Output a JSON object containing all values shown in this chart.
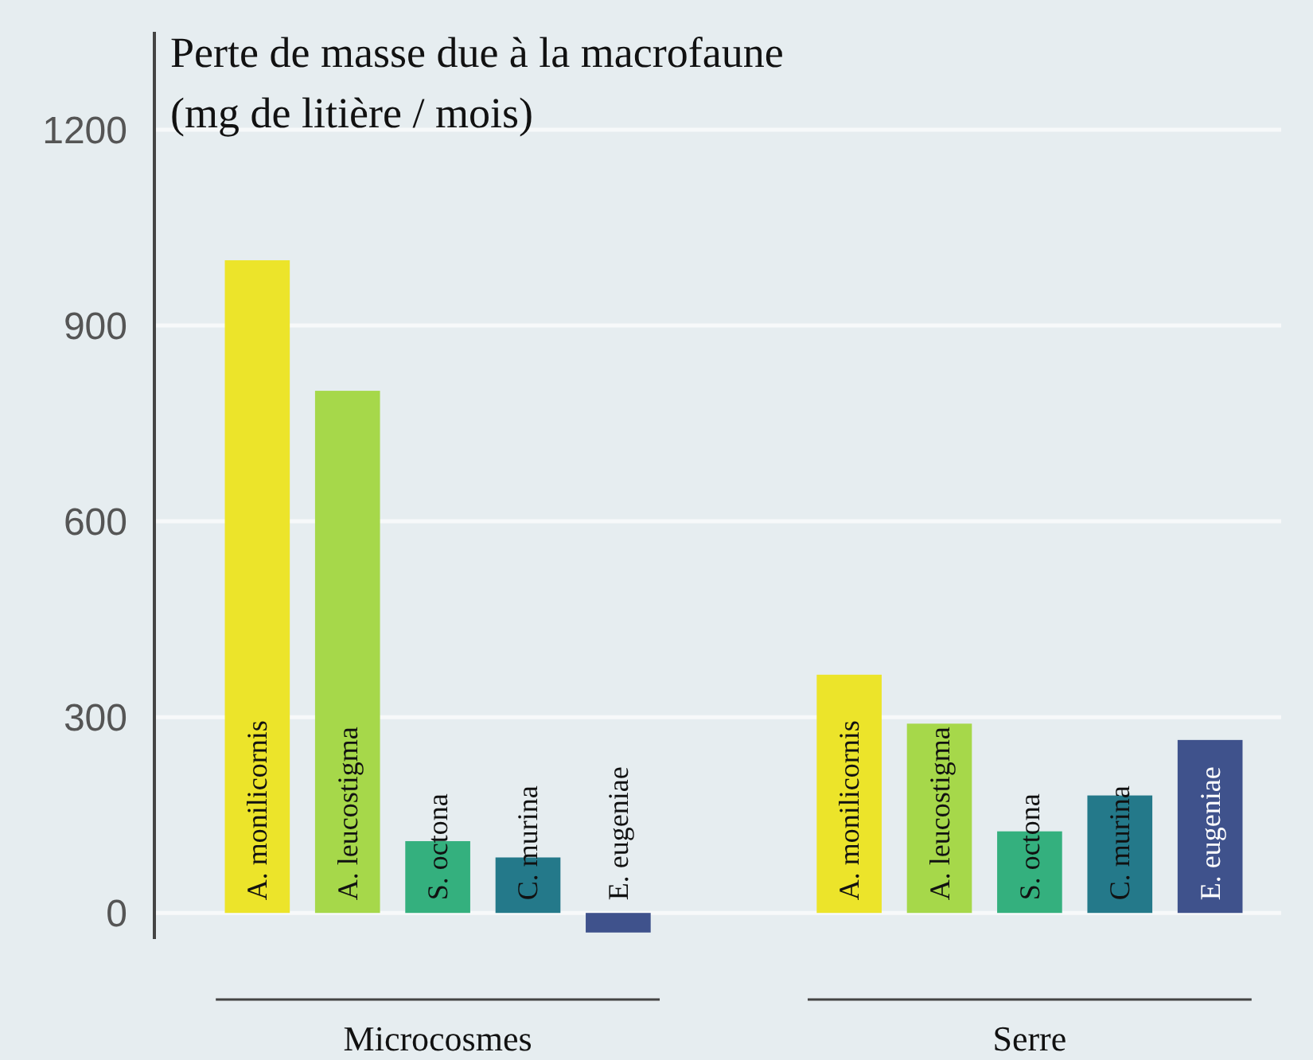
{
  "chart_data": {
    "type": "bar",
    "ylabel": "Perte de masse due à la macrofaune\n(mg de litière / mois)",
    "categories": [
      "Microcosmes",
      "Serre"
    ],
    "series": [
      {
        "name": "A. monilicornis",
        "color": "#ece42a",
        "values": [
          1000,
          365
        ]
      },
      {
        "name": "A. leucostigma",
        "color": "#a6d84a",
        "values": [
          800,
          290
        ]
      },
      {
        "name": "S. octona",
        "color": "#34b07e",
        "values": [
          110,
          125
        ]
      },
      {
        "name": "C. murina",
        "color": "#24798a",
        "values": [
          85,
          180
        ]
      },
      {
        "name": "E. eugeniae",
        "color": "#3f528c",
        "values": [
          -30,
          265
        ]
      }
    ],
    "ylim": [
      -40,
      1350
    ],
    "yticks": [
      0,
      300,
      600,
      900,
      1200
    ],
    "grid": "y"
  }
}
